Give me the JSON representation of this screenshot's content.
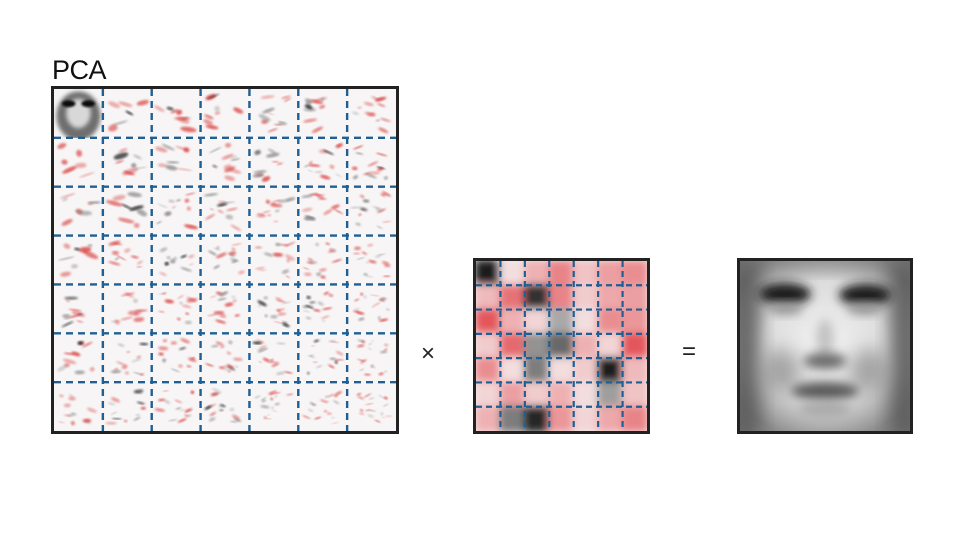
{
  "figure": {
    "title": "PCA",
    "operator_multiply": "×",
    "operator_equals": "="
  },
  "basis_grid": {
    "rows": 7,
    "cols": 7,
    "grid_color": "#1f5f94",
    "negative_color": "#d93a3a",
    "positive_color": "#1a1a1a"
  },
  "coefficient_grid": {
    "rows": 7,
    "cols": 7,
    "grid_color": "#1f5f94",
    "values": [
      [
        -0.95,
        0.1,
        0.35,
        0.6,
        0.25,
        0.45,
        0.55
      ],
      [
        0.3,
        0.7,
        -0.85,
        0.6,
        0.2,
        0.4,
        0.45
      ],
      [
        0.85,
        0.35,
        0.15,
        -0.3,
        0.1,
        0.55,
        0.5
      ],
      [
        0.2,
        0.75,
        -0.4,
        -0.6,
        0.35,
        0.15,
        0.85
      ],
      [
        0.55,
        0.1,
        -0.5,
        0.1,
        0.2,
        -0.95,
        0.3
      ],
      [
        0.15,
        0.45,
        0.2,
        0.35,
        0.1,
        -0.35,
        0.25
      ],
      [
        0.35,
        -0.5,
        -0.9,
        0.5,
        0.15,
        0.4,
        0.6
      ]
    ]
  },
  "reconstruction": {
    "label": "reconstructed-face"
  }
}
